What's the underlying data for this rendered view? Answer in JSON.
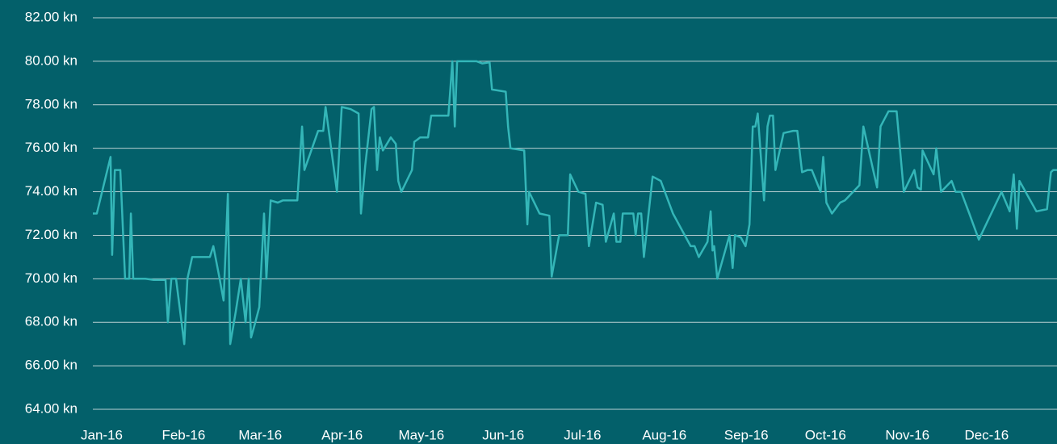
{
  "chart_data": {
    "type": "line",
    "series": [
      {
        "color": "#34b6b8",
        "x": [
          0,
          1.5,
          6.7,
          7.3,
          8.3,
          10.4,
          12.2,
          13.8,
          14.4,
          15.3,
          19.9,
          23,
          27.5,
          28.4,
          29.7,
          31.5,
          34.6,
          35.8,
          37.6,
          44.3,
          45.6,
          48,
          49.5,
          51.1,
          52,
          54.1,
          56,
          57.8,
          59,
          59.9,
          61.5,
          63,
          64.8,
          65.7,
          67.3,
          70,
          71.9,
          77.4,
          79.2,
          80.1,
          85.3,
          87.2,
          88.1,
          92.4,
          94.2,
          97.6,
          100.6,
          101.5,
          103.1,
          105.5,
          106.4,
          107.6,
          108.6,
          109.8,
          112.8,
          114.7,
          115.6,
          116.8,
          120.8,
          121.7,
          122.9,
          123.9,
          126.9,
          128.1,
          134.6,
          136.1,
          137,
          137.9,
          145.3,
          147.4,
          150.2,
          151.1,
          156.3,
          157.2,
          158.1,
          163.3,
          164.5,
          165.1,
          169.1,
          172.8,
          173.7,
          176.5,
          179.8,
          180.7,
          183.8,
          186.5,
          187.8,
          190.5,
          193,
          194.2,
          197.2,
          198.2,
          199.7,
          200.6,
          204.6,
          205.5,
          206.4,
          207.6,
          208.6,
          211.9,
          215,
          219.6,
          226.3,
          227.8,
          229.4,
          232.7,
          233.9,
          234.6,
          235.2,
          236.4,
          241,
          242.2,
          243.1,
          245.3,
          247.1,
          248.6,
          249.8,
          250.8,
          251.7,
          254.1,
          255.4,
          256.3,
          257.5,
          258.4,
          261.5,
          265.1,
          266.7,
          268.5,
          270.6,
          272.2,
          275.5,
          276.5,
          277.7,
          279.8,
          282.9,
          284.7,
          290.2,
          291.7,
          296.9,
          298.2,
          301.2,
          304.3,
          307,
          311,
          312.2,
          313.5,
          314.1,
          318.3,
          319.3,
          321.1,
          325.1,
          326.6,
          328.7,
          331.8,
          335.4,
          344,
          347.1,
          348.6,
          349.8,
          350.8,
          357.2,
          361.2,
          362.7,
          363.6,
          365
        ],
        "values": [
          73,
          73,
          75.6,
          71.1,
          75,
          75,
          70,
          70,
          73,
          70,
          70,
          69.95,
          69.95,
          68,
          70,
          70,
          67,
          70,
          71,
          71,
          71.5,
          70,
          69,
          73.9,
          67,
          68.5,
          70,
          68,
          70,
          67.3,
          68,
          68.7,
          73,
          70,
          73.6,
          73.5,
          73.6,
          73.6,
          77,
          75,
          76.8,
          76.8,
          77.9,
          74,
          77.9,
          77.8,
          77.6,
          73,
          75.2,
          77.8,
          77.9,
          75,
          76.5,
          75.9,
          76.5,
          76.2,
          74.5,
          74,
          75,
          76.3,
          76.4,
          76.5,
          76.5,
          77.5,
          77.5,
          80,
          77,
          80,
          80,
          79.9,
          79.95,
          78.7,
          78.6,
          77,
          76,
          75.9,
          72.5,
          74,
          73,
          72.9,
          70.1,
          72,
          72,
          74.8,
          74,
          73.9,
          71.5,
          73.5,
          73.4,
          71.7,
          73,
          71.7,
          71.7,
          73,
          73,
          72,
          73,
          73,
          71,
          74.7,
          74.5,
          73,
          71.5,
          71.5,
          71,
          71.7,
          73.1,
          71.3,
          71.5,
          70,
          72,
          70.5,
          72,
          71.9,
          71.5,
          72.5,
          77,
          77,
          77.6,
          73.6,
          77,
          77.5,
          77.5,
          75,
          76.7,
          76.8,
          76.8,
          74.9,
          75,
          75,
          74,
          75.6,
          73.5,
          73,
          73.5,
          73.6,
          74.3,
          77,
          74.2,
          77,
          77.7,
          77.7,
          74,
          75,
          74.2,
          74.1,
          75.9,
          74.8,
          76,
          74,
          74.5,
          74,
          74,
          73,
          71.8,
          74,
          73.1,
          74.8,
          72.3,
          74.5,
          73.1,
          73.2,
          74.9,
          75,
          75
        ]
      }
    ],
    "xlim": [
      0,
      365
    ],
    "xticks": [
      {
        "value": 0,
        "label": "Jan-16"
      },
      {
        "value": 31,
        "label": "Feb-16"
      },
      {
        "value": 60,
        "label": "Mar-16"
      },
      {
        "value": 91,
        "label": "Apr-16"
      },
      {
        "value": 121,
        "label": "May-16"
      },
      {
        "value": 152,
        "label": "Jun-16"
      },
      {
        "value": 182,
        "label": "Jul-16"
      },
      {
        "value": 213,
        "label": "Aug-16"
      },
      {
        "value": 244,
        "label": "Sep-16"
      },
      {
        "value": 274,
        "label": "Oct-16"
      },
      {
        "value": 305,
        "label": "Nov-16"
      },
      {
        "value": 335,
        "label": "Dec-16"
      }
    ],
    "ylim": [
      64,
      82
    ],
    "yticks": [
      {
        "value": 64,
        "label": "64.00 kn"
      },
      {
        "value": 66,
        "label": "66.00 kn"
      },
      {
        "value": 68,
        "label": "68.00 kn"
      },
      {
        "value": 70,
        "label": "70.00 kn"
      },
      {
        "value": 72,
        "label": "72.00 kn"
      },
      {
        "value": 74,
        "label": "74.00 kn"
      },
      {
        "value": 76,
        "label": "76.00 kn"
      },
      {
        "value": 78,
        "label": "78.00 kn"
      },
      {
        "value": 80,
        "label": "80.00 kn"
      },
      {
        "value": 82,
        "label": "82.00 kn"
      }
    ],
    "grid": true
  }
}
